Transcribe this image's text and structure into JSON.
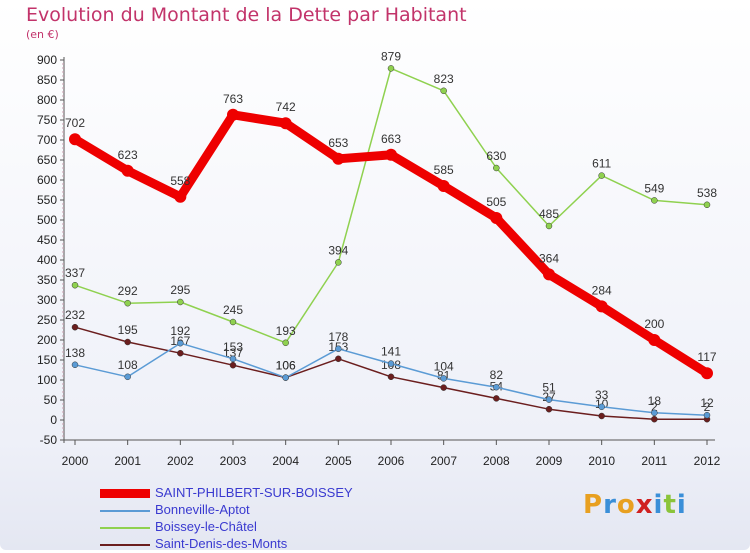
{
  "title": "Evolution du Montant de la Dette par Habitant",
  "unit": "(en €)",
  "brand": {
    "letters": [
      "P",
      "r",
      "o",
      "x",
      "i",
      "t",
      "i"
    ],
    "colors": [
      "#e8a020",
      "#3a8fd8",
      "#e8a020",
      "#d02020",
      "#3a8fd8",
      "#8bc43a",
      "#3a8fd8"
    ]
  },
  "chart_data": {
    "type": "line",
    "title": "Evolution du Montant de la Dette par Habitant",
    "ylabel": "(en €)",
    "xlabel": "",
    "ylim": [
      -50,
      900
    ],
    "yticks": [
      "-50",
      "0",
      "50",
      "100",
      "150",
      "200",
      "250",
      "300",
      "350",
      "400",
      "450",
      "500",
      "550",
      "600",
      "650",
      "700",
      "750",
      "800",
      "850",
      "900"
    ],
    "categories": [
      "2000",
      "2001",
      "2002",
      "2003",
      "2004",
      "2005",
      "2006",
      "2007",
      "2008",
      "2009",
      "2010",
      "2011",
      "2012"
    ],
    "grid": false,
    "legend": "bottom-left",
    "series": [
      {
        "name": "Boissey-le-Châtel",
        "color": "#8fd14f",
        "values": [
          337,
          292,
          295,
          245,
          193,
          394,
          879,
          823,
          630,
          485,
          611,
          549,
          538
        ],
        "labels": [
          "337",
          "292",
          "295",
          "245",
          "193",
          "394",
          "879",
          "823",
          "630",
          "485",
          "611",
          "549",
          "538"
        ]
      },
      {
        "name": "Saint-Denis-des-Monts",
        "color": "#6b1e1e",
        "values": [
          232,
          195,
          167,
          137,
          106,
          153,
          108,
          81,
          54,
          27,
          10,
          2,
          2
        ],
        "labels": [
          "232",
          "195",
          "167",
          "137",
          "106",
          "153",
          "108",
          "81",
          "54",
          "27",
          "10",
          "2",
          "2"
        ]
      },
      {
        "name": "Bonneville-Aptot",
        "color": "#5b9bd5",
        "values": [
          138,
          108,
          192,
          153,
          106,
          178,
          141,
          104,
          82,
          51,
          33,
          18,
          12
        ],
        "labels": [
          "138",
          "108",
          "192",
          "153",
          "106",
          "178",
          "141",
          "104",
          "82",
          "51",
          "33",
          "18",
          "12"
        ]
      },
      {
        "name": "SAINT-PHILBERT-SUR-BOISSEY",
        "color": "#ee0000",
        "values": [
          702,
          623,
          558,
          763,
          742,
          653,
          663,
          585,
          505,
          364,
          284,
          200,
          117
        ],
        "labels": [
          "702",
          "623",
          "558",
          "763",
          "742",
          "653",
          "663",
          "585",
          "505",
          "364",
          "284",
          "200",
          "117"
        ]
      }
    ]
  },
  "legend_order": [
    "SAINT-PHILBERT-SUR-BOISSEY",
    "Bonneville-Aptot",
    "Boissey-le-Châtel",
    "Saint-Denis-des-Monts"
  ]
}
